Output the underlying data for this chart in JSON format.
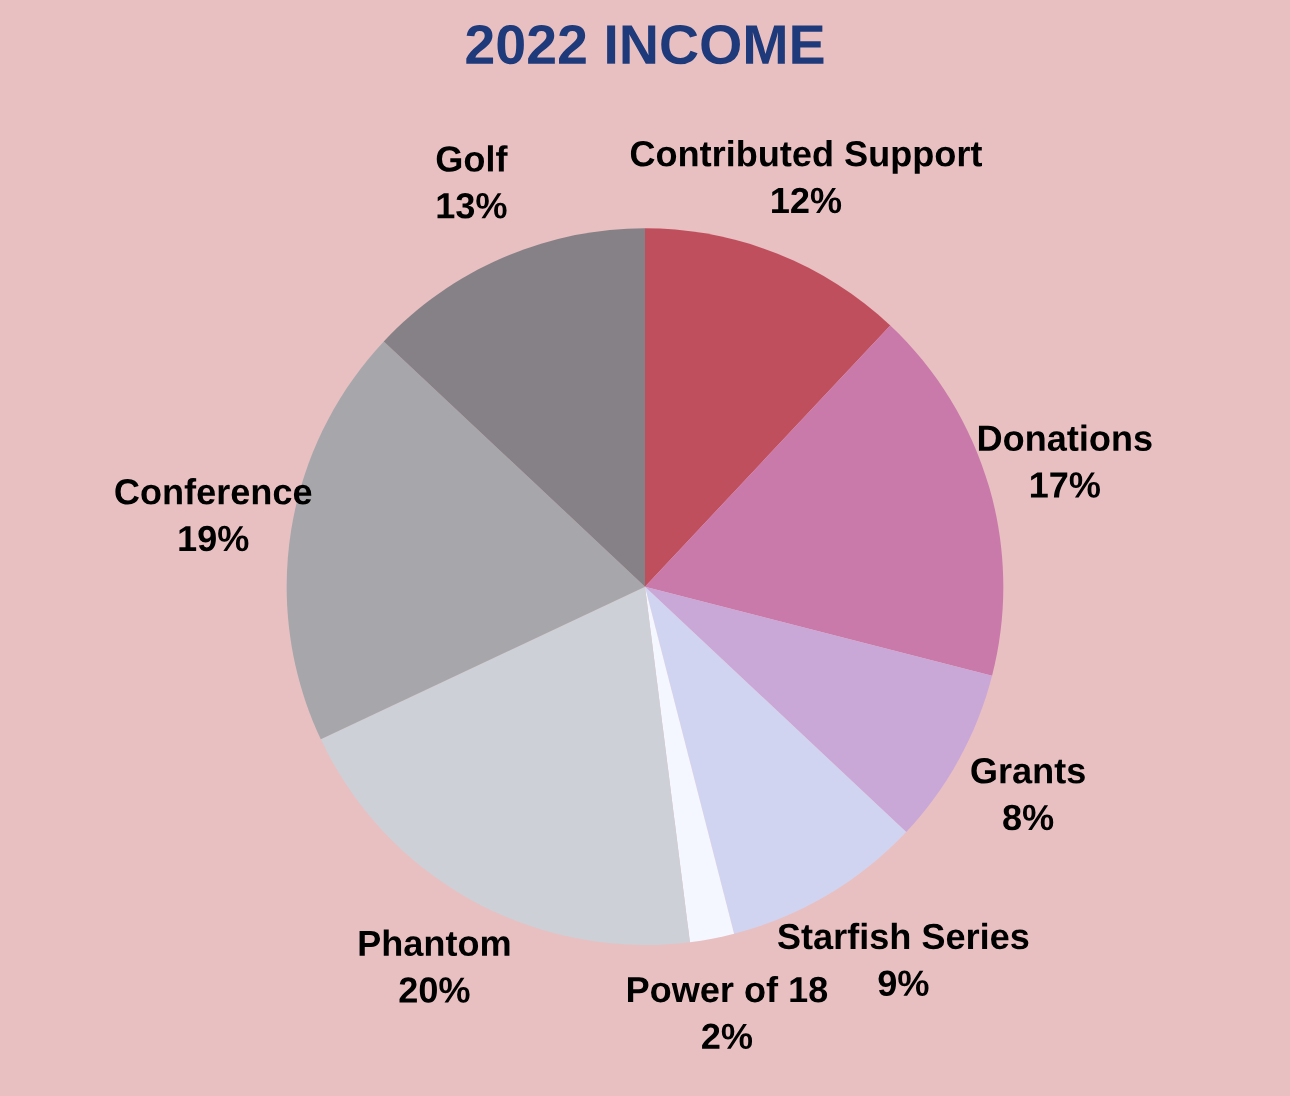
{
  "chart_data": {
    "type": "pie",
    "title": "2022 INCOME",
    "categories": [
      "Contributed Support",
      "Donations",
      "Grants",
      "Starfish Series",
      "Power of 18",
      "Phantom",
      "Conference",
      "Golf"
    ],
    "values": [
      12,
      17,
      8,
      9,
      2,
      20,
      19,
      13
    ],
    "value_labels": [
      "12%",
      "17%",
      "8%",
      "9%",
      "2%",
      "20%",
      "19%",
      "13%"
    ],
    "colors": [
      "#c04f5e",
      "#c97aaa",
      "#c9a8d8",
      "#d1d4f0",
      "#f4f7ff",
      "#cdd0d6",
      "#a7a7ab",
      "#858186"
    ],
    "legend": false
  }
}
